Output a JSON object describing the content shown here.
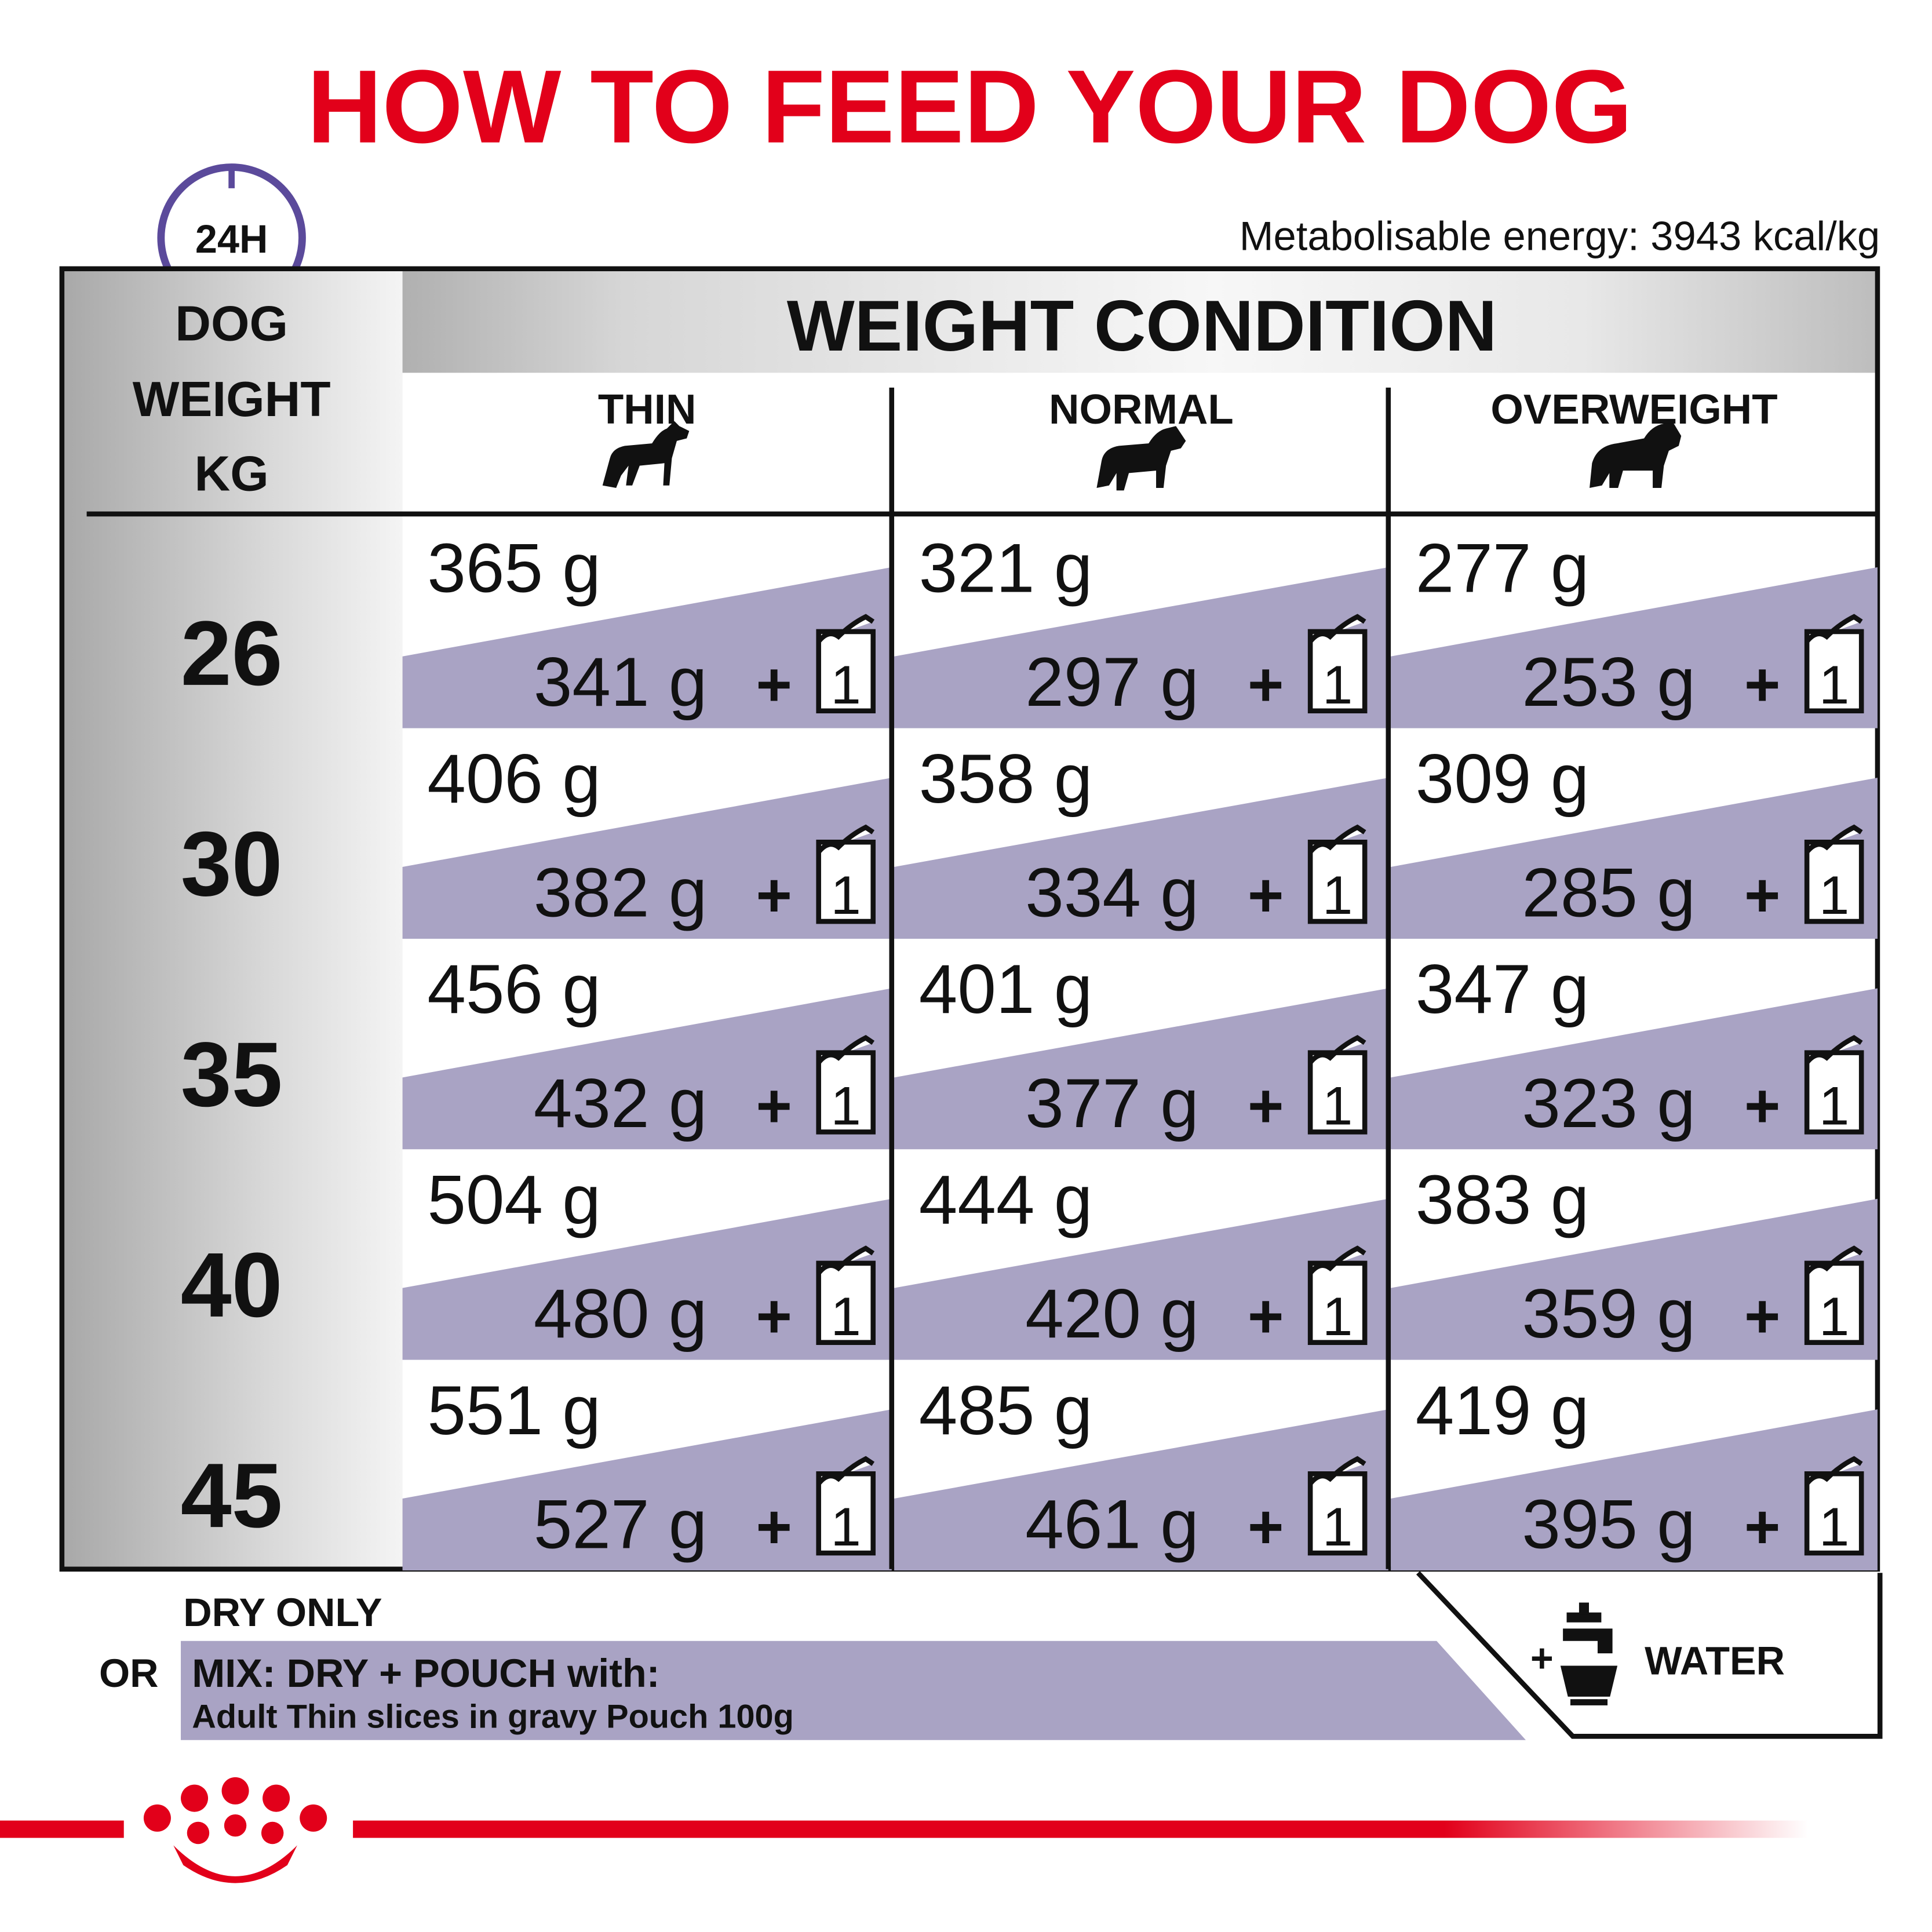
{
  "title": "HOW TO FEED YOUR DOG",
  "badge": "24H",
  "energy": "Metabolisable energy: 3943 kcal/kg",
  "table": {
    "weight_header": [
      "DOG",
      "WEIGHT",
      "KG"
    ],
    "condition_header": "WEIGHT CONDITION",
    "columns": [
      "THIN",
      "NORMAL",
      "OVERWEIGHT"
    ],
    "plus": "+",
    "pouch": "1",
    "rows": [
      {
        "weight": "26",
        "cells": [
          {
            "dry": "365 g",
            "mix": "341 g"
          },
          {
            "dry": "321 g",
            "mix": "297 g"
          },
          {
            "dry": "277 g",
            "mix": "253 g"
          }
        ]
      },
      {
        "weight": "30",
        "cells": [
          {
            "dry": "406 g",
            "mix": "382 g"
          },
          {
            "dry": "358 g",
            "mix": "334 g"
          },
          {
            "dry": "309 g",
            "mix": "285 g"
          }
        ]
      },
      {
        "weight": "35",
        "cells": [
          {
            "dry": "456 g",
            "mix": "432 g"
          },
          {
            "dry": "401 g",
            "mix": "377 g"
          },
          {
            "dry": "347 g",
            "mix": "323 g"
          }
        ]
      },
      {
        "weight": "40",
        "cells": [
          {
            "dry": "504 g",
            "mix": "480 g"
          },
          {
            "dry": "444 g",
            "mix": "420 g"
          },
          {
            "dry": "383 g",
            "mix": "359 g"
          }
        ]
      },
      {
        "weight": "45",
        "cells": [
          {
            "dry": "551 g",
            "mix": "527 g"
          },
          {
            "dry": "485 g",
            "mix": "461 g"
          },
          {
            "dry": "419 g",
            "mix": "395 g"
          }
        ]
      }
    ]
  },
  "legend": {
    "dry": "DRY ONLY",
    "or": "OR",
    "mix": "MIX: DRY + POUCH with:",
    "mix_detail": "Adult Thin slices in gravy Pouch 100g",
    "water_plus": "+",
    "water": "WATER"
  }
}
